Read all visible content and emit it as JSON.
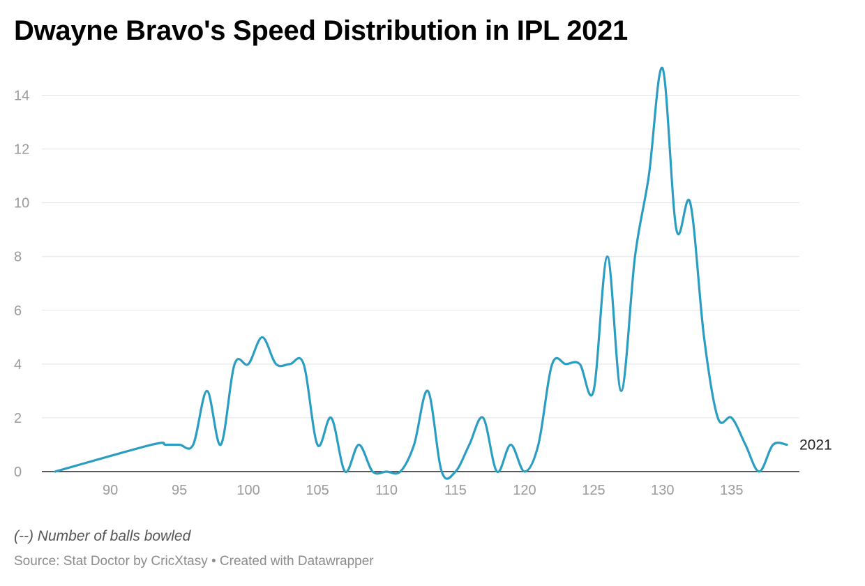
{
  "chart_data": {
    "type": "line",
    "title": "Dwayne Bravo's Speed Distribution in IPL 2021",
    "xlabel": "",
    "ylabel": "",
    "note": "(--) Number of balls bowled",
    "source": "Source: Stat Doctor by CricXtasy • Created with Datawrapper",
    "xlim": [
      86,
      139
    ],
    "ylim": [
      0,
      15
    ],
    "x_ticks": [
      "90",
      "95",
      "100",
      "105",
      "110",
      "115",
      "120",
      "125",
      "130",
      "135"
    ],
    "y_ticks": [
      "0",
      "2",
      "4",
      "6",
      "8",
      "10",
      "12",
      "14"
    ],
    "color": "#2a9dc2",
    "grid": true,
    "series": [
      {
        "name": "2021",
        "x": [
          86,
          93,
          94,
          95,
          96,
          97,
          98,
          99,
          100,
          101,
          102,
          103,
          104,
          105,
          106,
          107,
          108,
          109,
          110,
          111,
          112,
          113,
          114,
          115,
          116,
          117,
          118,
          119,
          120,
          121,
          122,
          123,
          124,
          125,
          126,
          127,
          128,
          129,
          130,
          131,
          132,
          133,
          134,
          135,
          136,
          137,
          138,
          139
        ],
        "values": [
          0,
          1,
          1,
          1,
          1,
          3,
          1,
          4,
          4,
          5,
          4,
          4,
          4,
          1,
          2,
          0,
          1,
          0,
          0,
          0,
          1,
          3,
          0,
          0,
          1,
          2,
          0,
          1,
          0,
          1,
          4,
          4,
          4,
          3,
          8,
          3,
          8,
          11,
          15,
          9,
          10,
          5,
          2,
          2,
          1,
          0,
          1,
          1
        ]
      }
    ]
  }
}
